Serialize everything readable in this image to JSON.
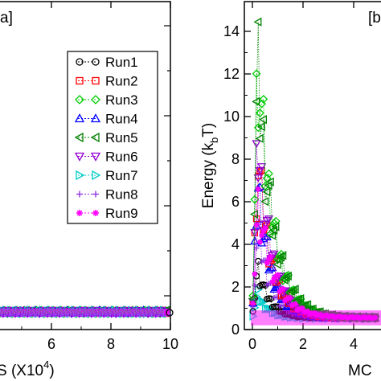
{
  "chart_data": [
    {
      "panel": "a",
      "type": "scatter",
      "panel_tag": "a]",
      "xlabel": "S (X10",
      "xlabel_sup": "4",
      "xlabel_end": ")",
      "xlim": [
        0,
        10
      ],
      "xticks": [
        "6",
        "8",
        "10"
      ],
      "xtick_values": [
        6,
        8,
        10
      ],
      "ylabel": "",
      "legend_placement": "top-right",
      "series": [
        {
          "name": "Run1",
          "color": "#000000",
          "marker": "circle"
        },
        {
          "name": "Run2",
          "color": "#ff0000",
          "marker": "square"
        },
        {
          "name": "Run3",
          "color": "#00cc00",
          "marker": "diamond"
        },
        {
          "name": "Run4",
          "color": "#0000ff",
          "marker": "triangle-up"
        },
        {
          "name": "Run5",
          "color": "#008000",
          "marker": "triangle-left"
        },
        {
          "name": "Run6",
          "color": "#9400d3",
          "marker": "triangle-down"
        },
        {
          "name": "Run7",
          "color": "#00cccc",
          "marker": "triangle-right"
        },
        {
          "name": "Run8",
          "color": "#8a2be2",
          "marker": "plus"
        },
        {
          "name": "Run9",
          "color": "#ff00ff",
          "marker": "asterisk"
        }
      ],
      "plateau_value": 0.55
    },
    {
      "panel": "b",
      "type": "scatter",
      "panel_tag": "[b",
      "xlabel": "MC",
      "xlim": [
        0,
        5
      ],
      "xticks": [
        "0",
        "2",
        "4"
      ],
      "xtick_values": [
        0,
        2,
        4
      ],
      "ylabel": "Energy (k",
      "ylabel_sub": "b",
      "ylabel_end": "T)",
      "ylim": [
        0,
        15
      ],
      "yticks": [
        "0",
        "2",
        "4",
        "6",
        "8",
        "10",
        "12",
        "14"
      ],
      "ytick_values": [
        0,
        2,
        4,
        6,
        8,
        10,
        12,
        14
      ],
      "peaks": [
        {
          "name": "Run1",
          "peak": 3.0
        },
        {
          "name": "Run2",
          "peak": 8.2
        },
        {
          "name": "Run3",
          "peak": 12.9
        },
        {
          "name": "Run4",
          "peak": 7.0
        },
        {
          "name": "Run5",
          "peak": 12.3
        },
        {
          "name": "Run6",
          "peak": 8.8
        },
        {
          "name": "Run7",
          "peak": 1.7
        },
        {
          "name": "Run8",
          "peak": 5.0
        },
        {
          "name": "Run9",
          "peak": 6.0
        }
      ],
      "plateau_value": 0.55
    }
  ]
}
